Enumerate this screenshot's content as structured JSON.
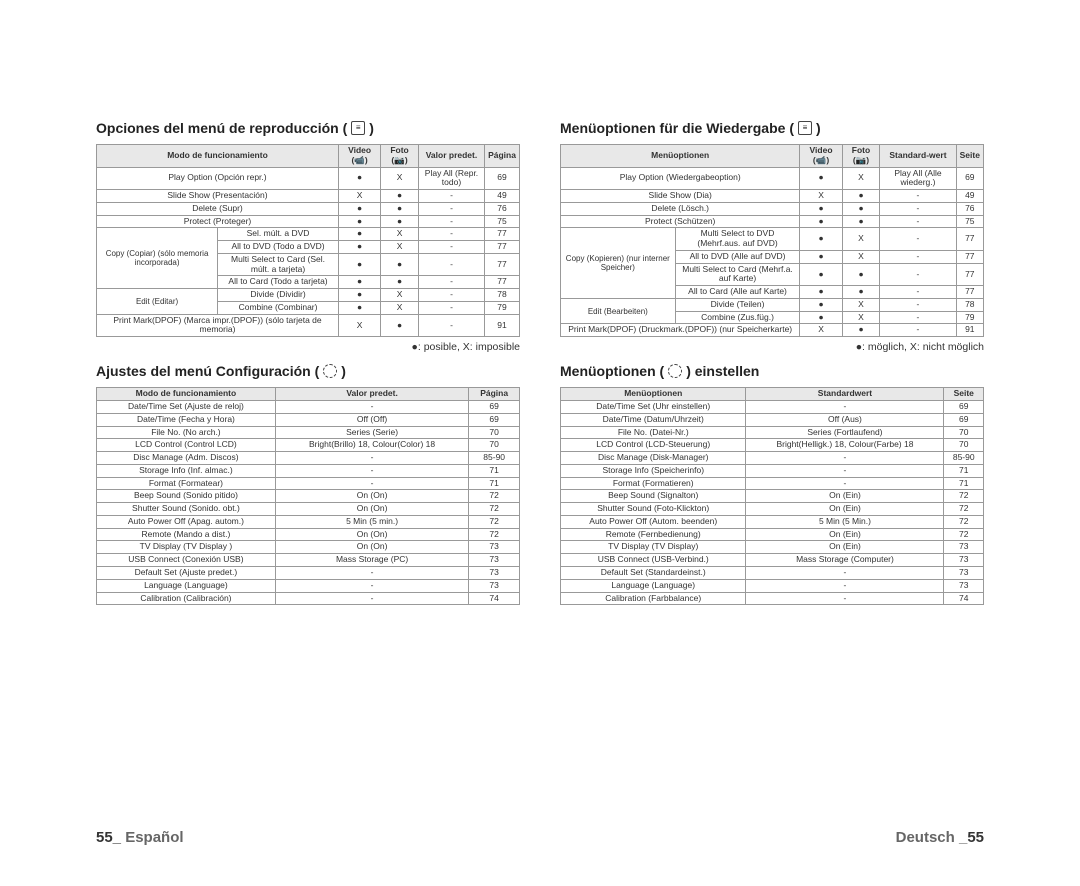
{
  "left": {
    "section1": {
      "title_prefix": "Opciones del menú de reproducción (",
      "title_suffix": " )",
      "headers": [
        "Modo de funcionamiento",
        "Video (📹)",
        "Foto (📷)",
        "Valor predet.",
        "Página"
      ],
      "rowgroup_copy": "Copy (Copiar) (sólo memoria incorporada)",
      "rowgroup_edit": "Edit (Editar)",
      "rows": [
        [
          "Play Option (Opción repr.)",
          "●",
          "X",
          "Play All (Repr. todo)",
          "69"
        ],
        [
          "Slide Show (Presentación)",
          "X",
          "●",
          "-",
          "49"
        ],
        [
          "Delete (Supr)",
          "●",
          "●",
          "-",
          "76"
        ],
        [
          "Protect (Proteger)",
          "●",
          "●",
          "-",
          "75"
        ],
        [
          "Sel. múlt. a DVD",
          "●",
          "X",
          "-",
          "77"
        ],
        [
          "All to DVD (Todo a DVD)",
          "●",
          "X",
          "-",
          "77"
        ],
        [
          "Multi Select to Card (Sel. múlt. a tarjeta)",
          "●",
          "●",
          "-",
          "77"
        ],
        [
          "All to Card (Todo a tarjeta)",
          "●",
          "●",
          "-",
          "77"
        ],
        [
          "Divide (Dividir)",
          "●",
          "X",
          "-",
          "78"
        ],
        [
          "Combine (Combinar)",
          "●",
          "X",
          "-",
          "79"
        ],
        [
          "Print Mark(DPOF) (Marca impr.(DPOF)) (sólo tarjeta de memoria)",
          "X",
          "●",
          "-",
          "91"
        ]
      ],
      "legend": "●: posible, X: imposible"
    },
    "section2": {
      "title_prefix": "Ajustes del menú Configuración (",
      "title_suffix": " )",
      "headers": [
        "Modo de funcionamiento",
        "Valor predet.",
        "Página"
      ],
      "rows": [
        [
          "Date/Time Set (Ajuste de reloj)",
          "-",
          "69"
        ],
        [
          "Date/Time (Fecha y Hora)",
          "Off (Off)",
          "69"
        ],
        [
          "File No. (No arch.)",
          "Series (Serie)",
          "70"
        ],
        [
          "LCD Control (Control LCD)",
          "Bright(Brillo) 18, Colour(Color) 18",
          "70"
        ],
        [
          "Disc Manage (Adm. Discos)",
          "-",
          "85-90"
        ],
        [
          "Storage Info (Inf. almac.)",
          "-",
          "71"
        ],
        [
          "Format (Formatear)",
          "-",
          "71"
        ],
        [
          "Beep Sound (Sonido pitido)",
          "On (On)",
          "72"
        ],
        [
          "Shutter Sound (Sonido. obt.)",
          "On (On)",
          "72"
        ],
        [
          "Auto Power Off (Apag. autom.)",
          "5 Min (5 min.)",
          "72"
        ],
        [
          "Remote (Mando a dist.)",
          "On (On)",
          "72"
        ],
        [
          "TV Display (TV Display )",
          "On (On)",
          "73"
        ],
        [
          "USB Connect (Conexión USB)",
          "Mass Storage (PC)",
          "73"
        ],
        [
          "Default Set (Ajuste predet.)",
          "-",
          "73"
        ],
        [
          "Language (Language)",
          "-",
          "73"
        ],
        [
          "Calibration (Calibración)",
          "-",
          "74"
        ]
      ]
    },
    "footer_num": "55_",
    "footer_lang": " Español"
  },
  "right": {
    "section1": {
      "title_prefix": "Menüoptionen für die Wiedergabe (",
      "title_suffix": " )",
      "headers": [
        "Menüoptionen",
        "Video (📹)",
        "Foto (📷)",
        "Standard-wert",
        "Seite"
      ],
      "rowgroup_copy": "Copy (Kopieren) (nur interner Speicher)",
      "rowgroup_edit": "Edit (Bearbeiten)",
      "rows": [
        [
          "Play Option (Wiedergabeoption)",
          "●",
          "X",
          "Play All (Alle wiederg.)",
          "69"
        ],
        [
          "Slide Show (Dia)",
          "X",
          "●",
          "-",
          "49"
        ],
        [
          "Delete (Lösch.)",
          "●",
          "●",
          "-",
          "76"
        ],
        [
          "Protect (Schützen)",
          "●",
          "●",
          "-",
          "75"
        ],
        [
          "Multi Select to DVD (Mehrf.aus. auf DVD)",
          "●",
          "X",
          "-",
          "77"
        ],
        [
          "All to DVD (Alle auf DVD)",
          "●",
          "X",
          "-",
          "77"
        ],
        [
          "Multi Select to Card (Mehrf.a. auf Karte)",
          "●",
          "●",
          "-",
          "77"
        ],
        [
          "All to Card (Alle auf Karte)",
          "●",
          "●",
          "-",
          "77"
        ],
        [
          "Divide (Teilen)",
          "●",
          "X",
          "-",
          "78"
        ],
        [
          "Combine (Zus.füg.)",
          "●",
          "X",
          "-",
          "79"
        ],
        [
          "Print Mark(DPOF) (Druckmark.(DPOF)) (nur Speicherkarte)",
          "X",
          "●",
          "-",
          "91"
        ]
      ],
      "legend": "●: möglich, X: nicht möglich"
    },
    "section2": {
      "title_prefix": "Menüoptionen (",
      "title_mid": ") einstellen",
      "headers": [
        "Menüoptionen",
        "Standardwert",
        "Seite"
      ],
      "rows": [
        [
          "Date/Time Set (Uhr einstellen)",
          "-",
          "69"
        ],
        [
          "Date/Time (Datum/Uhrzeit)",
          "Off (Aus)",
          "69"
        ],
        [
          "File No. (Datei-Nr.)",
          "Series (Fortlaufend)",
          "70"
        ],
        [
          "LCD Control (LCD-Steuerung)",
          "Bright(Helligk.) 18, Colour(Farbe) 18",
          "70"
        ],
        [
          "Disc Manage (Disk-Manager)",
          "-",
          "85-90"
        ],
        [
          "Storage Info (Speicherinfo)",
          "-",
          "71"
        ],
        [
          "Format (Formatieren)",
          "-",
          "71"
        ],
        [
          "Beep Sound (Signalton)",
          "On (Ein)",
          "72"
        ],
        [
          "Shutter Sound (Foto-Klickton)",
          "On (Ein)",
          "72"
        ],
        [
          "Auto Power Off (Autom. beenden)",
          "5 Min (5 Min.)",
          "72"
        ],
        [
          "Remote (Fernbedienung)",
          "On (Ein)",
          "72"
        ],
        [
          "TV Display (TV Display)",
          "On (Ein)",
          "73"
        ],
        [
          "USB Connect (USB-Verbind.)",
          "Mass Storage (Computer)",
          "73"
        ],
        [
          "Default Set (Standardeinst.)",
          "-",
          "73"
        ],
        [
          "Language (Language)",
          "-",
          "73"
        ],
        [
          "Calibration (Farbbalance)",
          "-",
          "74"
        ]
      ]
    },
    "footer_lang": "Deutsch _",
    "footer_num": "55"
  }
}
